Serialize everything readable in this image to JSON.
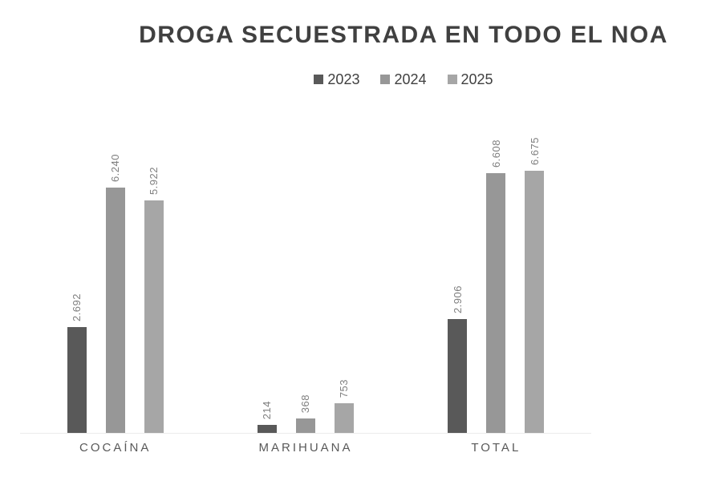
{
  "title": "DROGA SECUESTRADA EN TODO EL NOA",
  "chart_data": {
    "type": "bar",
    "title": "DROGA SECUESTRADA EN TODO EL NOA",
    "categories": [
      "COCAÍNA",
      "MARIHUANA",
      "TOTAL"
    ],
    "series": [
      {
        "name": "2023",
        "color": "#595959",
        "values": [
          2692,
          214,
          2906
        ],
        "labels": [
          "2.692",
          "214",
          "2.906"
        ]
      },
      {
        "name": "2024",
        "color": "#979797",
        "values": [
          6240,
          368,
          6608
        ],
        "labels": [
          "6.240",
          "368",
          "6.608"
        ]
      },
      {
        "name": "2025",
        "color": "#a6a6a6",
        "values": [
          5922,
          753,
          6675
        ],
        "labels": [
          "5.922",
          "753",
          "6.675"
        ]
      }
    ],
    "ylim": [
      0,
      8000
    ],
    "grid": false,
    "legend_position": "top",
    "value_label_rotation": -90,
    "axis_labels_visible": false
  },
  "colors": {
    "background": "#ffffff",
    "title_text": "#404040",
    "legend_text": "#404040",
    "value_label": "#7f7f7f",
    "category_label": "#595959",
    "baseline": "#ececec"
  }
}
